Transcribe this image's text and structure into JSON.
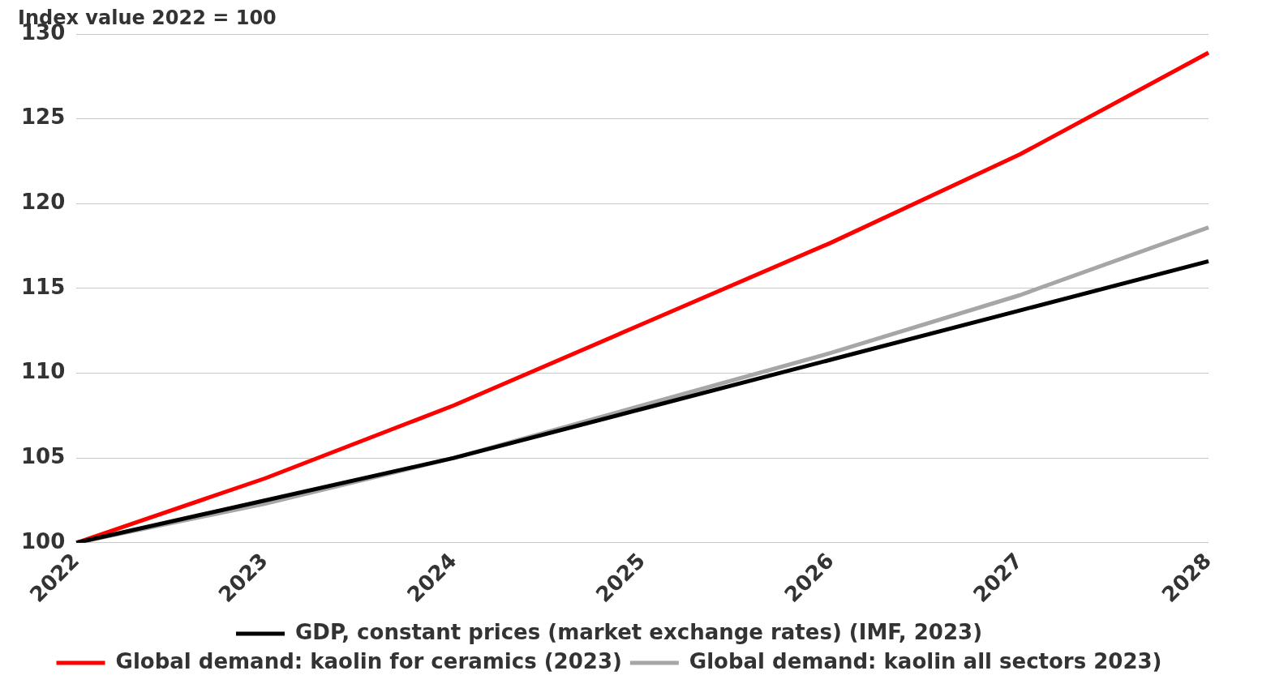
{
  "chart_data": {
    "type": "line",
    "ylabel": "Index value 2022 = 100",
    "categories": [
      "2022",
      "2023",
      "2024",
      "2025",
      "2026",
      "2027",
      "2028"
    ],
    "series": [
      {
        "name": "GDP, constant prices (market exchange rates) (IMF, 2023)",
        "color": "#000000",
        "values": [
          100,
          102.5,
          105.0,
          107.9,
          110.8,
          113.7,
          116.6
        ]
      },
      {
        "name": "Global demand: kaolin for ceramics (2023)",
        "color": "#ff0000",
        "values": [
          100,
          103.8,
          108.1,
          112.9,
          117.7,
          122.9,
          128.9
        ]
      },
      {
        "name": "Global demand: kaolin all sectors 2023)",
        "color": "#a6a6a6",
        "values": [
          100,
          102.3,
          105.0,
          108.1,
          111.2,
          114.6,
          118.6
        ]
      }
    ],
    "ylim": [
      100,
      130
    ],
    "yticks": [
      100,
      105,
      110,
      115,
      120,
      125,
      130
    ],
    "grid": "y",
    "legend": "bottom",
    "marker": "none",
    "line_style": "solid"
  }
}
